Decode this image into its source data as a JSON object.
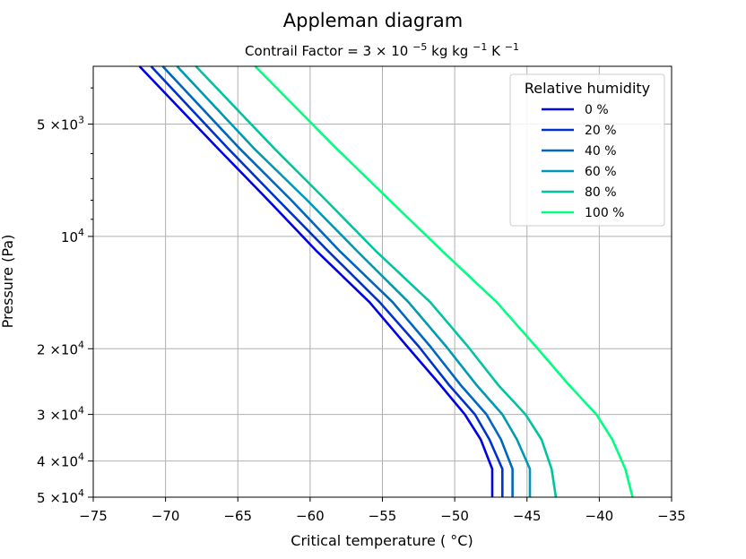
{
  "chart_data": {
    "type": "line",
    "title": "Appleman diagram",
    "subtitle_prefix": "Contrail Factor = 3",
    "subtitle_times": "×",
    "subtitle_base": "10",
    "subtitle_exp": "−5",
    "subtitle_unit1": " kg kg",
    "subtitle_unit1_exp": "−1",
    "subtitle_unit2": " K",
    "subtitle_unit2_exp": "−1",
    "xlabel": "Critical temperature ( °C)",
    "ylabel": "Pressure (Pa)",
    "xlim": [
      -75,
      -35
    ],
    "ylim": [
      50000,
      3500
    ],
    "yscale": "log",
    "y_inverted": true,
    "grid": true,
    "xticks": [
      -75,
      -70,
      -65,
      -60,
      -55,
      -50,
      -45,
      -40,
      -35
    ],
    "xtick_labels": [
      "−75",
      "−70",
      "−65",
      "−60",
      "−55",
      "−50",
      "−45",
      "−40",
      "−35"
    ],
    "yticks": [
      {
        "value": 5000,
        "mantissa": "5",
        "times": "×",
        "base": "10",
        "exp": "3"
      },
      {
        "value": 10000,
        "mantissa": "",
        "times": "",
        "base": "10",
        "exp": "4"
      },
      {
        "value": 20000,
        "mantissa": "2",
        "times": "×",
        "base": "10",
        "exp": "4"
      },
      {
        "value": 30000,
        "mantissa": "3",
        "times": "×",
        "base": "10",
        "exp": "4"
      },
      {
        "value": 40000,
        "mantissa": "4",
        "times": "×",
        "base": "10",
        "exp": "4"
      },
      {
        "value": 50000,
        "mantissa": "5",
        "times": "×",
        "base": "10",
        "exp": "4"
      }
    ],
    "legend": {
      "title": "Relative humidity",
      "placement": "top-right"
    },
    "series": [
      {
        "name": "0 %",
        "color": "#0000e6",
        "points": [
          [
            -71.8,
            3500
          ],
          [
            -66.4,
            5800
          ],
          [
            -62.9,
            8000
          ],
          [
            -59.5,
            11000
          ],
          [
            -55.9,
            15000
          ],
          [
            -53.3,
            19700
          ],
          [
            -51.0,
            25000
          ],
          [
            -49.3,
            30000
          ],
          [
            -48.2,
            35000
          ],
          [
            -47.4,
            42000
          ],
          [
            -47.4,
            50000
          ]
        ]
      },
      {
        "name": "20 %",
        "color": "#0033cc",
        "points": [
          [
            -71.0,
            3500
          ],
          [
            -65.7,
            5800
          ],
          [
            -62.2,
            8000
          ],
          [
            -58.7,
            11000
          ],
          [
            -55.2,
            15000
          ],
          [
            -52.5,
            19700
          ],
          [
            -50.4,
            25000
          ],
          [
            -48.6,
            30000
          ],
          [
            -47.6,
            35000
          ],
          [
            -46.7,
            42000
          ],
          [
            -46.7,
            50000
          ]
        ]
      },
      {
        "name": "40 %",
        "color": "#0066bf",
        "points": [
          [
            -70.2,
            3500
          ],
          [
            -64.9,
            5800
          ],
          [
            -61.3,
            8000
          ],
          [
            -57.9,
            11000
          ],
          [
            -54.3,
            15000
          ],
          [
            -51.7,
            19700
          ],
          [
            -49.6,
            25000
          ],
          [
            -47.8,
            30000
          ],
          [
            -46.8,
            35000
          ],
          [
            -46.0,
            42000
          ],
          [
            -46.0,
            50000
          ]
        ]
      },
      {
        "name": "60 %",
        "color": "#0099b3",
        "points": [
          [
            -69.2,
            3500
          ],
          [
            -63.9,
            5800
          ],
          [
            -60.2,
            8000
          ],
          [
            -56.7,
            11000
          ],
          [
            -53.2,
            15000
          ],
          [
            -50.6,
            19700
          ],
          [
            -48.5,
            25000
          ],
          [
            -46.7,
            30000
          ],
          [
            -45.7,
            35000
          ],
          [
            -44.8,
            42000
          ],
          [
            -44.8,
            50000
          ]
        ]
      },
      {
        "name": "80 %",
        "color": "#00c4a0",
        "points": [
          [
            -67.9,
            3500
          ],
          [
            -62.5,
            5800
          ],
          [
            -58.9,
            8000
          ],
          [
            -55.4,
            11000
          ],
          [
            -51.7,
            15000
          ],
          [
            -49.1,
            19700
          ],
          [
            -47.0,
            25000
          ],
          [
            -45.1,
            30000
          ],
          [
            -44.0,
            35000
          ],
          [
            -43.3,
            42000
          ],
          [
            -43.0,
            50000
          ]
        ]
      },
      {
        "name": "100 %",
        "color": "#00ff80",
        "points": [
          [
            -63.8,
            3500
          ],
          [
            -58.2,
            5800
          ],
          [
            -54.5,
            8000
          ],
          [
            -50.8,
            11000
          ],
          [
            -47.1,
            15000
          ],
          [
            -44.4,
            19700
          ],
          [
            -42.1,
            25000
          ],
          [
            -40.2,
            30000
          ],
          [
            -39.1,
            35000
          ],
          [
            -38.2,
            42000
          ],
          [
            -37.7,
            50000
          ]
        ]
      }
    ]
  }
}
